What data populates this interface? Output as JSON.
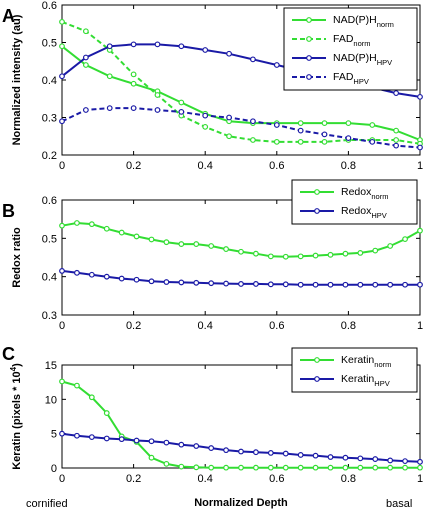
{
  "colors": {
    "normal": "#33dd33",
    "hpv": "#1a1aa6"
  },
  "footer": {
    "left": "cornified",
    "right": "basal"
  },
  "chart_data": [
    {
      "type": "line",
      "panel_label": "A",
      "ylabel": "Normalized intensity (au)",
      "xlabel": "",
      "xlim": [
        0,
        1
      ],
      "ylim": [
        0.2,
        0.6
      ],
      "xticks": [
        "0",
        "0.2",
        "0.4",
        "0.6",
        "0.8",
        "1"
      ],
      "yticks": [
        "0.2",
        "0.3",
        "0.4",
        "0.5",
        "0.6"
      ],
      "legend_position": "top-right",
      "series": [
        {
          "base": "NAD(P)H",
          "sub": "norm",
          "color": "normal",
          "dash": false,
          "x": [
            0,
            0.0667,
            0.1333,
            0.2,
            0.2667,
            0.3333,
            0.4,
            0.4667,
            0.5333,
            0.6,
            0.6667,
            0.7333,
            0.8,
            0.8667,
            0.9333,
            1
          ],
          "y": [
            0.49,
            0.44,
            0.41,
            0.39,
            0.37,
            0.34,
            0.31,
            0.29,
            0.285,
            0.285,
            0.285,
            0.285,
            0.285,
            0.28,
            0.265,
            0.24
          ]
        },
        {
          "base": "FAD",
          "sub": "norm",
          "color": "normal",
          "dash": true,
          "x": [
            0,
            0.0667,
            0.1333,
            0.2,
            0.2667,
            0.3333,
            0.4,
            0.4667,
            0.5333,
            0.6,
            0.6667,
            0.7333,
            0.8,
            0.8667,
            0.9333,
            1
          ],
          "y": [
            0.555,
            0.53,
            0.48,
            0.415,
            0.36,
            0.305,
            0.275,
            0.25,
            0.24,
            0.235,
            0.235,
            0.235,
            0.24,
            0.24,
            0.24,
            0.23
          ]
        },
        {
          "base": "NAD(P)H",
          "sub": "HPV",
          "color": "hpv",
          "dash": false,
          "x": [
            0,
            0.0667,
            0.1333,
            0.2,
            0.2667,
            0.3333,
            0.4,
            0.4667,
            0.5333,
            0.6,
            0.6667,
            0.7333,
            0.8,
            0.8667,
            0.9333,
            1
          ],
          "y": [
            0.41,
            0.46,
            0.49,
            0.495,
            0.495,
            0.49,
            0.48,
            0.47,
            0.455,
            0.44,
            0.425,
            0.41,
            0.395,
            0.38,
            0.365,
            0.355
          ]
        },
        {
          "base": "FAD",
          "sub": "HPV",
          "color": "hpv",
          "dash": true,
          "x": [
            0,
            0.0667,
            0.1333,
            0.2,
            0.2667,
            0.3333,
            0.4,
            0.4667,
            0.5333,
            0.6,
            0.6667,
            0.7333,
            0.8,
            0.8667,
            0.9333,
            1
          ],
          "y": [
            0.29,
            0.32,
            0.325,
            0.325,
            0.32,
            0.315,
            0.305,
            0.3,
            0.29,
            0.28,
            0.265,
            0.255,
            0.245,
            0.235,
            0.225,
            0.22
          ]
        }
      ]
    },
    {
      "type": "line",
      "panel_label": "B",
      "ylabel": "Redox ratio",
      "xlabel": "",
      "xlim": [
        0,
        1
      ],
      "ylim": [
        0.3,
        0.6
      ],
      "xticks": [
        "0",
        "0.2",
        "0.4",
        "0.6",
        "0.8",
        "1"
      ],
      "yticks": [
        "0.3",
        "0.4",
        "0.5",
        "0.6"
      ],
      "legend_position": "top-right",
      "series": [
        {
          "base": "Redox",
          "sub": "norm",
          "color": "normal",
          "dash": false,
          "x": [
            0,
            0.0417,
            0.0833,
            0.125,
            0.1667,
            0.2083,
            0.25,
            0.2917,
            0.3333,
            0.375,
            0.4167,
            0.4583,
            0.5,
            0.5417,
            0.5833,
            0.625,
            0.6667,
            0.7083,
            0.75,
            0.7917,
            0.8333,
            0.875,
            0.9167,
            0.9583,
            1
          ],
          "y": [
            0.533,
            0.54,
            0.537,
            0.525,
            0.515,
            0.505,
            0.497,
            0.49,
            0.485,
            0.485,
            0.48,
            0.472,
            0.465,
            0.46,
            0.453,
            0.452,
            0.453,
            0.455,
            0.457,
            0.46,
            0.462,
            0.468,
            0.48,
            0.498,
            0.52
          ]
        },
        {
          "base": "Redox",
          "sub": "HPV",
          "color": "hpv",
          "dash": false,
          "x": [
            0,
            0.0417,
            0.0833,
            0.125,
            0.1667,
            0.2083,
            0.25,
            0.2917,
            0.3333,
            0.375,
            0.4167,
            0.4583,
            0.5,
            0.5417,
            0.5833,
            0.625,
            0.6667,
            0.7083,
            0.75,
            0.7917,
            0.8333,
            0.875,
            0.9167,
            0.9583,
            1
          ],
          "y": [
            0.415,
            0.41,
            0.405,
            0.4,
            0.395,
            0.392,
            0.388,
            0.386,
            0.385,
            0.384,
            0.383,
            0.382,
            0.381,
            0.381,
            0.38,
            0.38,
            0.379,
            0.379,
            0.379,
            0.379,
            0.379,
            0.379,
            0.379,
            0.379,
            0.379
          ]
        }
      ]
    },
    {
      "type": "line",
      "panel_label": "C",
      "ylabel": "Keratin (pixels * 10",
      "ylabel_sup": "4",
      "ylabel_end": ")",
      "xlabel": "Normalized Depth",
      "xlim": [
        0,
        1
      ],
      "ylim": [
        0,
        15
      ],
      "xticks": [
        "0",
        "0.2",
        "0.4",
        "0.6",
        "0.8",
        "1"
      ],
      "yticks": [
        "0",
        "5",
        "10",
        "15"
      ],
      "legend_position": "top-right",
      "series": [
        {
          "base": "Keratin",
          "sub": "norm",
          "color": "normal",
          "dash": false,
          "x": [
            0,
            0.0417,
            0.0833,
            0.125,
            0.1667,
            0.2083,
            0.25,
            0.2917,
            0.3333,
            0.375,
            0.4167,
            0.4583,
            0.5,
            0.5417,
            0.5833,
            0.625,
            0.6667,
            0.7083,
            0.75,
            0.7917,
            0.8333,
            0.875,
            0.9167,
            0.9583,
            1
          ],
          "y": [
            12.6,
            12.0,
            10.3,
            8.0,
            4.6,
            3.8,
            1.5,
            0.6,
            0.2,
            0.1,
            0.05,
            0.05,
            0.05,
            0.05,
            0.05,
            0.05,
            0.05,
            0.05,
            0.05,
            0.05,
            0.05,
            0.05,
            0.05,
            0.05,
            0.05
          ]
        },
        {
          "base": "Keratin",
          "sub": "HPV",
          "color": "hpv",
          "dash": false,
          "x": [
            0,
            0.0417,
            0.0833,
            0.125,
            0.1667,
            0.2083,
            0.25,
            0.2917,
            0.3333,
            0.375,
            0.4167,
            0.4583,
            0.5,
            0.5417,
            0.5833,
            0.625,
            0.6667,
            0.7083,
            0.75,
            0.7917,
            0.8333,
            0.875,
            0.9167,
            0.9583,
            1
          ],
          "y": [
            5.0,
            4.7,
            4.5,
            4.3,
            4.2,
            4.0,
            3.9,
            3.7,
            3.4,
            3.2,
            2.9,
            2.6,
            2.4,
            2.3,
            2.2,
            2.1,
            1.9,
            1.8,
            1.6,
            1.5,
            1.4,
            1.3,
            1.1,
            1.0,
            0.9
          ]
        }
      ]
    }
  ]
}
